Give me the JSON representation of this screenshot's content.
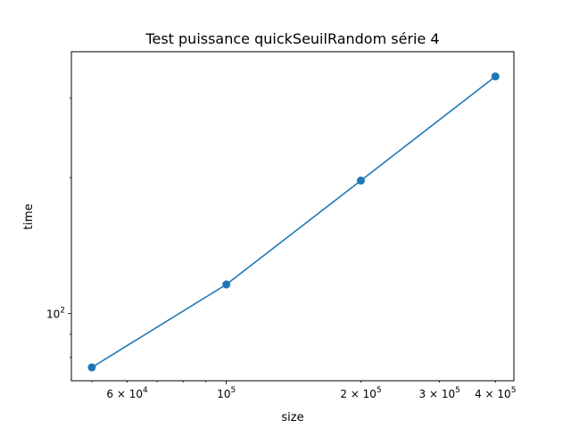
{
  "chart_data": {
    "type": "line",
    "title": "Test puissance quickSeuilRandom série 4",
    "xlabel": "size",
    "ylabel": "time",
    "xscale": "log",
    "yscale": "log",
    "xlim": [
      45000,
      440000
    ],
    "ylim": [
      71,
      380
    ],
    "grid": false,
    "series": [
      {
        "color": "#1f77b4",
        "marker": "circle",
        "x": [
          50000,
          100000,
          200000,
          400000
        ],
        "y": [
          76,
          116,
          197,
          335
        ]
      }
    ],
    "x_ticks": [
      {
        "value": 60000,
        "mantissa": "6",
        "base": "10",
        "exponent": "4"
      },
      {
        "value": 100000,
        "mantissa": "",
        "base": "10",
        "exponent": "5"
      },
      {
        "value": 200000,
        "mantissa": "2",
        "base": "10",
        "exponent": "5"
      },
      {
        "value": 300000,
        "mantissa": "3",
        "base": "10",
        "exponent": "5"
      },
      {
        "value": 400000,
        "mantissa": "4",
        "base": "10",
        "exponent": "5"
      }
    ],
    "y_ticks": [
      {
        "value": 100,
        "mantissa": "",
        "base": "10",
        "exponent": "2"
      }
    ]
  }
}
